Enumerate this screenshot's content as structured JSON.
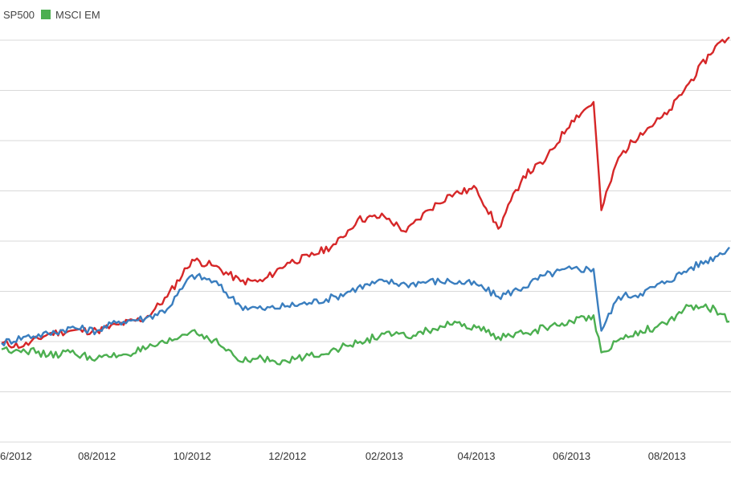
{
  "chart_data": {
    "type": "line",
    "title": "",
    "xlabel": "",
    "ylabel": "",
    "grid": true,
    "legend_position": "top-left",
    "x_tick_labels": [
      "6/2012",
      "08/2012",
      "10/2012",
      "12/2012",
      "02/2013",
      "04/2013",
      "06/2013",
      "08/2013"
    ],
    "x": [
      "2012-06-01",
      "2012-06-15",
      "2012-07-01",
      "2012-07-15",
      "2012-08-01",
      "2012-08-15",
      "2012-09-01",
      "2012-09-15",
      "2012-10-01",
      "2012-10-15",
      "2012-11-01",
      "2012-11-15",
      "2012-12-01",
      "2012-12-15",
      "2013-01-01",
      "2013-01-15",
      "2013-02-01",
      "2013-02-15",
      "2013-03-01",
      "2013-03-15",
      "2013-04-01",
      "2013-04-15",
      "2013-05-01",
      "2013-05-15",
      "2013-06-01",
      "2013-06-15",
      "2013-06-20",
      "2013-07-01",
      "2013-07-15",
      "2013-08-01",
      "2013-08-15",
      "2013-09-01",
      "2013-09-10"
    ],
    "ylim": [
      0.7,
      2.0
    ],
    "series": [
      {
        "name": "",
        "color": "#d62728",
        "values": [
          1.02,
          1.01,
          1.05,
          1.06,
          1.06,
          1.08,
          1.1,
          1.17,
          1.29,
          1.27,
          1.22,
          1.22,
          1.28,
          1.3,
          1.34,
          1.42,
          1.43,
          1.38,
          1.45,
          1.5,
          1.52,
          1.39,
          1.56,
          1.61,
          1.74,
          1.8,
          1.45,
          1.62,
          1.7,
          1.76,
          1.86,
          1.98,
          2.01
        ]
      },
      {
        "name": "SP500",
        "color": "#3a7ebf",
        "values": [
          1.02,
          1.04,
          1.05,
          1.07,
          1.06,
          1.09,
          1.1,
          1.13,
          1.24,
          1.22,
          1.14,
          1.13,
          1.14,
          1.15,
          1.17,
          1.2,
          1.22,
          1.21,
          1.22,
          1.22,
          1.21,
          1.17,
          1.2,
          1.24,
          1.26,
          1.26,
          1.06,
          1.17,
          1.18,
          1.22,
          1.26,
          1.3,
          1.33
        ]
      },
      {
        "name": "MSCI EM",
        "color": "#4caf50",
        "values": [
          1.0,
          1.0,
          0.98,
          0.99,
          0.97,
          0.98,
          1.0,
          1.02,
          1.06,
          1.03,
          0.96,
          0.97,
          0.96,
          0.98,
          1.0,
          1.02,
          1.05,
          1.04,
          1.06,
          1.08,
          1.07,
          1.04,
          1.05,
          1.07,
          1.09,
          1.11,
          0.99,
          1.03,
          1.06,
          1.08,
          1.14,
          1.13,
          1.09
        ]
      }
    ]
  }
}
